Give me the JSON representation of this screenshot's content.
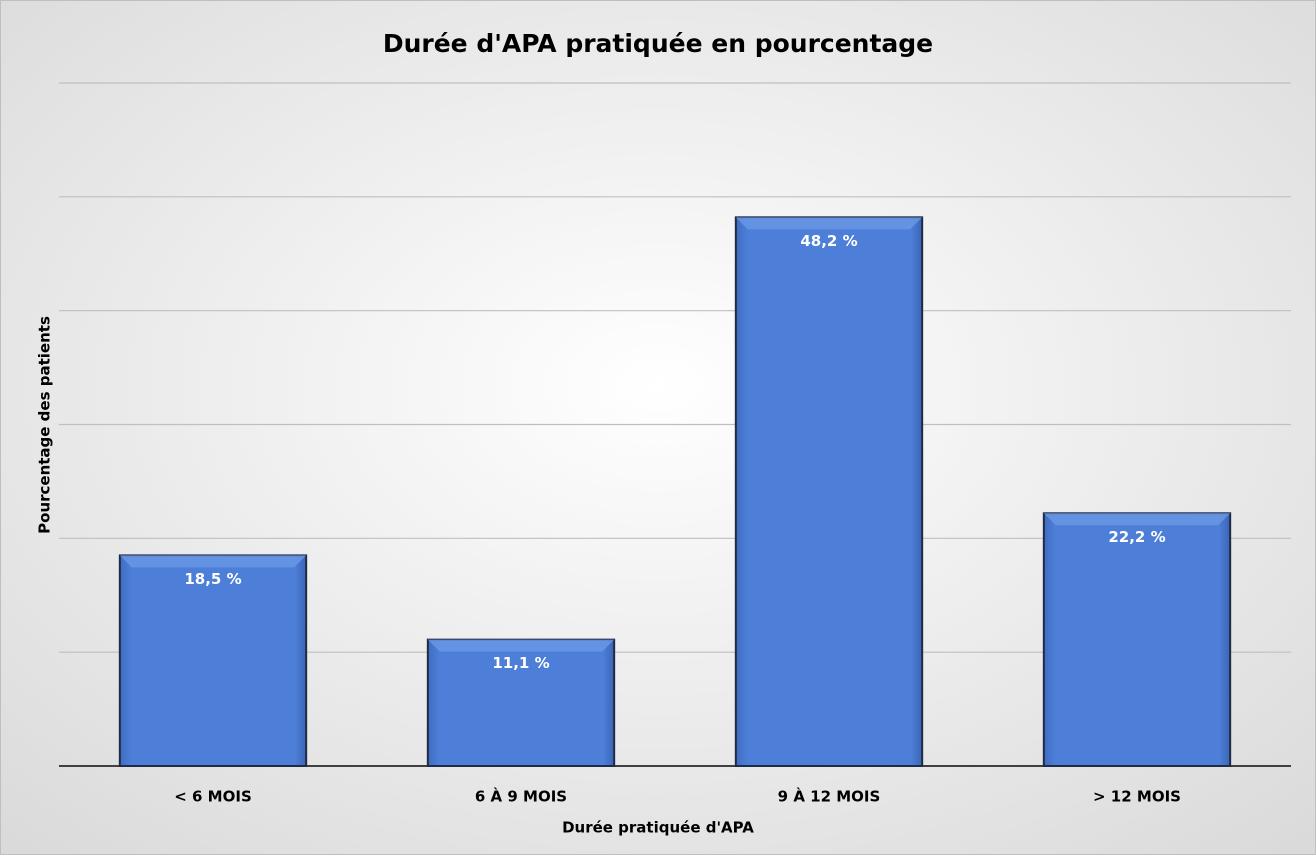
{
  "chart_data": {
    "type": "bar",
    "title": "Durée d'APA pratiquée en pourcentage",
    "x_label": "Durée pratiquée d'APA",
    "y_label": "Pourcentage des patients",
    "categories": [
      "< 6 MOIS",
      "6 À 9 MOIS",
      "9 À 12 MOIS",
      "> 12 MOIS"
    ],
    "values": [
      18.5,
      11.1,
      48.2,
      22.2
    ],
    "value_labels": [
      "18,5 %",
      "11,1 %",
      "48,2 %",
      "22,2 %"
    ],
    "color": "#4a7bd4",
    "ylim": [
      0,
      60
    ],
    "yticks": [
      0,
      10,
      20,
      30,
      40,
      50,
      60
    ],
    "grid": true
  }
}
